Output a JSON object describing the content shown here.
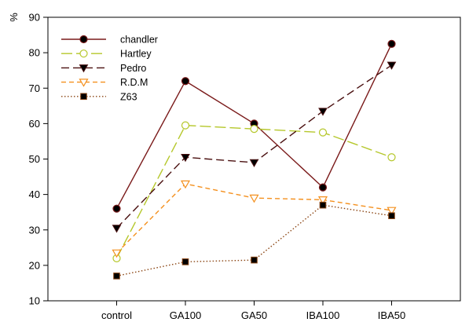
{
  "chart_data": {
    "type": "line",
    "title": "",
    "xlabel": "",
    "ylabel": "%",
    "ylim": [
      10,
      90
    ],
    "yticks": [
      "10",
      "20",
      "30",
      "40",
      "50",
      "60",
      "70",
      "80",
      "90"
    ],
    "categories": [
      "control",
      "GA100",
      "GA50",
      "IBA100",
      "IBA50"
    ],
    "legend_position": "top-left",
    "grid": false,
    "series": [
      {
        "name": "chandler",
        "color": "#7a1a1a",
        "dash": "solid",
        "marker": "circle-filled",
        "values": [
          36,
          72,
          60,
          42,
          82.5
        ]
      },
      {
        "name": "Hartley",
        "color": "#b5c72a",
        "dash": "long-dash",
        "marker": "circle-open",
        "values": [
          22,
          59.5,
          58.5,
          57.5,
          50.5
        ]
      },
      {
        "name": "Pedro",
        "color": "#4a1010",
        "dash": "dash",
        "marker": "triangle-down-filled",
        "values": [
          30.5,
          50.5,
          49,
          63.5,
          76.5
        ]
      },
      {
        "name": "R.D.M",
        "color": "#f4901e",
        "dash": "short-dash",
        "marker": "triangle-down-open",
        "values": [
          23.5,
          43,
          39,
          38.5,
          35.5
        ]
      },
      {
        "name": "Z63",
        "color": "#8b4513",
        "dash": "dotted",
        "marker": "square-filled",
        "values": [
          17,
          21,
          21.5,
          37,
          34
        ]
      }
    ]
  }
}
